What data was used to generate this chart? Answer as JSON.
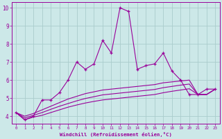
{
  "x": [
    0,
    1,
    2,
    3,
    4,
    5,
    6,
    7,
    8,
    9,
    10,
    11,
    12,
    13,
    14,
    15,
    16,
    17,
    18,
    19,
    20,
    21,
    22,
    23
  ],
  "line_main": [
    4.2,
    3.8,
    4.0,
    4.9,
    4.9,
    5.3,
    6.0,
    7.0,
    6.6,
    6.9,
    8.2,
    7.5,
    10.0,
    9.8,
    6.6,
    6.8,
    6.9,
    7.5,
    6.5,
    6.0,
    5.2,
    5.2,
    5.5,
    5.5
  ],
  "line_top": [
    4.2,
    4.0,
    4.15,
    4.35,
    4.55,
    4.75,
    4.95,
    5.1,
    5.25,
    5.35,
    5.45,
    5.5,
    5.55,
    5.6,
    5.65,
    5.7,
    5.75,
    5.85,
    5.9,
    5.95,
    6.0,
    5.2,
    5.2,
    5.5
  ],
  "line_mid": [
    4.2,
    3.9,
    4.05,
    4.2,
    4.38,
    4.55,
    4.7,
    4.85,
    4.98,
    5.08,
    5.18,
    5.23,
    5.28,
    5.33,
    5.38,
    5.43,
    5.48,
    5.58,
    5.65,
    5.72,
    5.78,
    5.2,
    5.2,
    5.5
  ],
  "line_bot": [
    4.2,
    3.8,
    3.95,
    4.05,
    4.2,
    4.35,
    4.5,
    4.62,
    4.73,
    4.82,
    4.9,
    4.95,
    5.0,
    5.05,
    5.1,
    5.15,
    5.2,
    5.3,
    5.38,
    5.45,
    5.52,
    5.2,
    5.2,
    5.5
  ],
  "line_color": "#990099",
  "bg_color": "#cce8e8",
  "grid_color": "#aacccc",
  "xlabel": "Windchill (Refroidissement éolien,°C)",
  "yticks": [
    4,
    5,
    6,
    7,
    8,
    9,
    10
  ],
  "xticks": [
    0,
    1,
    2,
    3,
    4,
    5,
    6,
    7,
    8,
    9,
    10,
    11,
    12,
    13,
    14,
    15,
    16,
    17,
    18,
    19,
    20,
    21,
    22,
    23
  ],
  "ylim": [
    3.6,
    10.3
  ],
  "xlim": [
    -0.5,
    23.5
  ]
}
